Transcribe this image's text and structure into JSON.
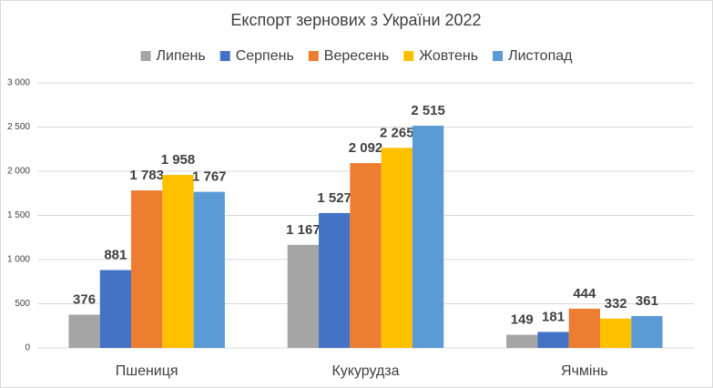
{
  "chart_data": {
    "type": "bar",
    "title": "Експорт зернових з України 2022",
    "categories": [
      "Пшениця",
      "Кукурудза",
      "Ячмінь"
    ],
    "series": [
      {
        "name": "Липень",
        "color": "#a5a5a5",
        "values": [
          376,
          1167,
          149
        ],
        "value_labels": [
          "376",
          "1 167",
          "149"
        ]
      },
      {
        "name": "Серпень",
        "color": "#4472c4",
        "values": [
          881,
          1527,
          181
        ],
        "value_labels": [
          "881",
          "1 527",
          "181"
        ]
      },
      {
        "name": "Вересень",
        "color": "#ed7d31",
        "values": [
          1783,
          2092,
          444
        ],
        "value_labels": [
          "1 783",
          "2 092",
          "444"
        ]
      },
      {
        "name": "Жовтень",
        "color": "#ffc000",
        "values": [
          1958,
          2265,
          332
        ],
        "value_labels": [
          "1 958",
          "2 265",
          "332"
        ]
      },
      {
        "name": "Листопад",
        "color": "#5b9bd5",
        "values": [
          1767,
          2515,
          361
        ],
        "value_labels": [
          "1 767",
          "2 515",
          "361"
        ]
      }
    ],
    "ylim": [
      0,
      3000
    ],
    "yticks": [
      0,
      500,
      {
        "value": 1000,
        "label": "1 000"
      },
      {
        "value": 1500,
        "label": "1 500"
      },
      {
        "value": 2000,
        "label": "2 000"
      },
      {
        "value": 2500,
        "label": "2 500"
      },
      {
        "value": 3000,
        "label": "3 000"
      }
    ],
    "grid": true,
    "legend": "top"
  }
}
